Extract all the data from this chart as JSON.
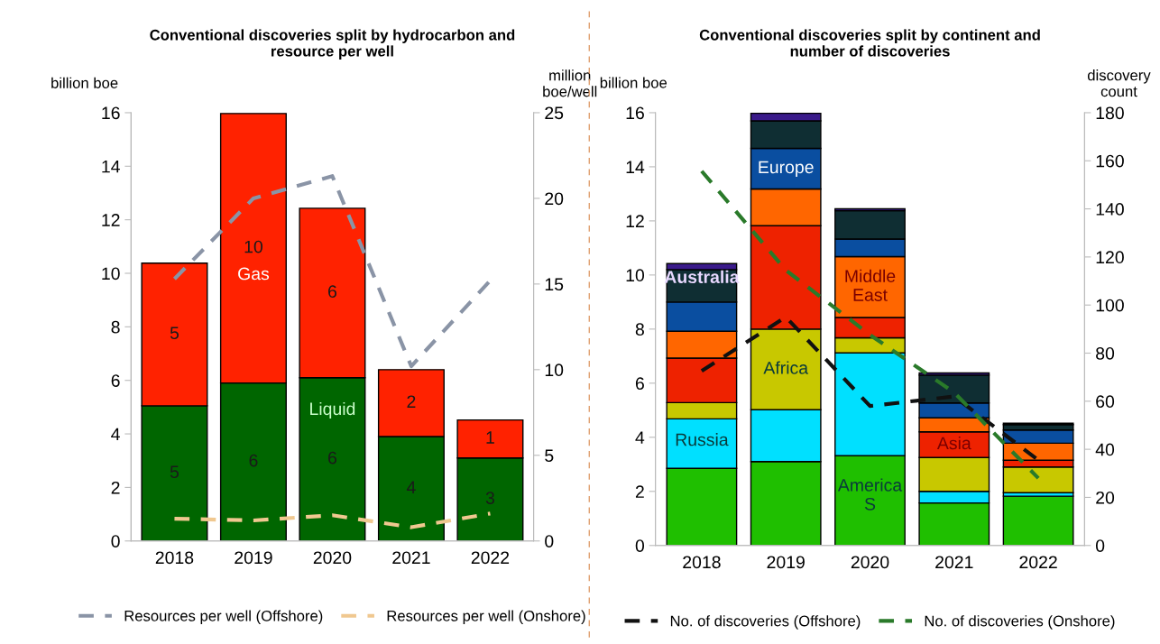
{
  "chart_data": [
    {
      "type": "bar",
      "stacked": true,
      "title": "Conventional discoveries split by hydrocarbon and\nresource per well",
      "ylabel": "billion boe",
      "y2label": "million\nboe/well",
      "categories": [
        "2018",
        "2019",
        "2020",
        "2021",
        "2022"
      ],
      "series": [
        {
          "name": "Liquid",
          "color": "#006600",
          "values": [
            5.05,
            5.9,
            6.1,
            3.9,
            3.1
          ],
          "value_labels": [
            "5",
            "6",
            "6",
            "4",
            "3"
          ]
        },
        {
          "name": "Gas",
          "color": "#ff2200",
          "values": [
            5.33,
            10.07,
            6.33,
            2.5,
            1.42
          ],
          "value_labels": [
            "5",
            "10",
            "6",
            "2",
            "1"
          ]
        },
        {
          "type": "line",
          "axis": "y2",
          "name": "Resources per well (Offshore)",
          "color": "#8a94a6",
          "line_style": "dashed",
          "values": [
            15.3,
            20,
            21.3,
            10.2,
            15.2
          ]
        },
        {
          "type": "line",
          "axis": "y2",
          "name": "Resources per well (Onshore)",
          "color": "#f0c890",
          "line_style": "dashed",
          "values": [
            1.3,
            1.2,
            1.5,
            0.8,
            1.6
          ]
        }
      ],
      "ylim": [
        0,
        16
      ],
      "yticks": [
        0,
        2,
        4,
        6,
        8,
        10,
        12,
        14,
        16
      ],
      "y2lim": [
        0,
        25
      ],
      "y2ticks": [
        0,
        5,
        10,
        15,
        20,
        25
      ],
      "legend": "bottom",
      "grid": false
    },
    {
      "type": "bar",
      "stacked": true,
      "title": "Conventional discoveries split by continent and\nnumber of discoveries",
      "ylabel": "billion boe",
      "y2label": "discovery\ncount",
      "categories": [
        "2018",
        "2019",
        "2020",
        "2021",
        "2022"
      ],
      "series": [
        {
          "name": "America\nS",
          "color": "#1fbf00",
          "values": [
            2.85,
            3.1,
            3.32,
            1.57,
            1.82
          ]
        },
        {
          "name": "Russia",
          "color": "#00e0ff",
          "values": [
            1.83,
            1.92,
            3.8,
            0.43,
            0.13
          ]
        },
        {
          "name": "Africa",
          "color": "#c8c800",
          "values": [
            0.6,
            2.98,
            0.56,
            1.25,
            0.95
          ]
        },
        {
          "name": "Asia",
          "color": "#ee2200",
          "values": [
            1.65,
            3.82,
            0.75,
            0.95,
            0.25
          ]
        },
        {
          "name": "Middle\nEast",
          "color": "#ff6600",
          "values": [
            0.99,
            1.36,
            2.25,
            0.52,
            0.63
          ]
        },
        {
          "name": "Europe",
          "color": "#0a4ea0",
          "values": [
            1.08,
            1.5,
            0.65,
            0.55,
            0.49
          ]
        },
        {
          "color": "#0f2e33",
          "values": [
            1.2,
            1.02,
            1.05,
            1.03,
            0.2
          ]
        },
        {
          "name": "Australia",
          "color": "#3a1a8a",
          "values": [
            0.22,
            0.28,
            0.07,
            0.08,
            0.05
          ]
        },
        {
          "type": "line",
          "axis": "y2",
          "name": "No. of discoveries (Offshore)",
          "color": "#111111",
          "line_style": "dashed",
          "values": [
            72.6,
            95,
            58,
            62,
            35.5
          ]
        },
        {
          "type": "line",
          "axis": "y2",
          "name": "No. of discoveries (Onshore)",
          "color": "#2a7a2a",
          "line_style": "dashed",
          "values": [
            155.7,
            114.5,
            87.6,
            63.6,
            28
          ]
        }
      ],
      "ylim": [
        0,
        16
      ],
      "yticks": [
        0,
        2,
        4,
        6,
        8,
        10,
        12,
        14,
        16
      ],
      "y2lim": [
        0,
        180
      ],
      "y2ticks": [
        0,
        20,
        40,
        60,
        80,
        100,
        120,
        140,
        160,
        180
      ],
      "legend": "bottom",
      "grid": false
    }
  ]
}
